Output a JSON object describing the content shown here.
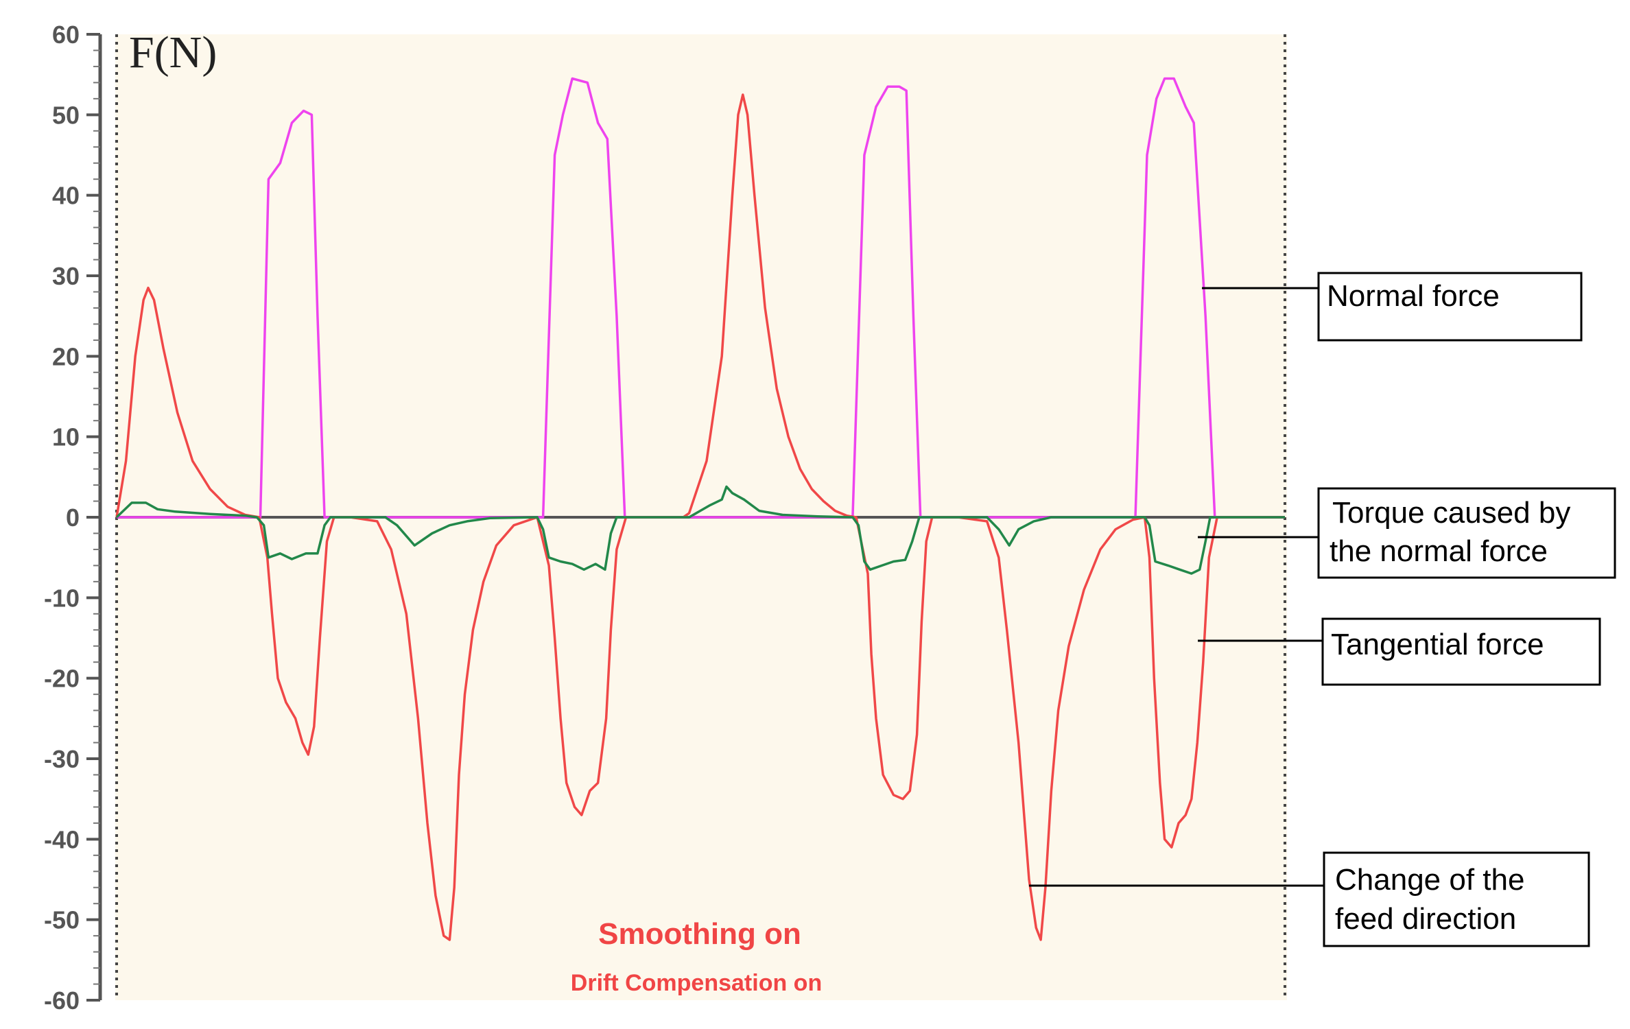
{
  "chart_data": {
    "type": "line",
    "ylabel": "F(N)",
    "ylim": [
      -60,
      60
    ],
    "yticks": [
      60,
      50,
      40,
      30,
      20,
      10,
      0,
      -10,
      -20,
      -30,
      -40,
      -50,
      -60
    ],
    "xlim": [
      0,
      100
    ],
    "grid": false,
    "status_lines": [
      "Smoothing on",
      "Drift Compensation on"
    ],
    "annotations": [
      {
        "id": "normal",
        "lines": [
          "Normal force"
        ]
      },
      {
        "id": "torque",
        "lines": [
          "Torque caused by",
          "the normal force"
        ]
      },
      {
        "id": "tangential",
        "lines": [
          "Tangential force"
        ]
      },
      {
        "id": "feed",
        "lines": [
          "Change of the",
          "feed direction"
        ]
      }
    ],
    "series": [
      {
        "color": "#ee44ee",
        "points": [
          [
            0,
            0
          ],
          [
            11,
            0
          ],
          [
            12.3,
            0
          ],
          [
            13,
            42
          ],
          [
            14,
            44
          ],
          [
            15,
            49
          ],
          [
            16,
            50.5
          ],
          [
            16.7,
            50
          ],
          [
            17.2,
            25
          ],
          [
            17.8,
            0
          ],
          [
            35.5,
            0
          ],
          [
            36.5,
            0
          ],
          [
            37.5,
            45
          ],
          [
            38.2,
            50
          ],
          [
            39,
            54.5
          ],
          [
            40.3,
            54
          ],
          [
            41.2,
            49
          ],
          [
            42,
            47
          ],
          [
            42.8,
            25
          ],
          [
            43.5,
            0
          ],
          [
            62,
            0
          ],
          [
            63,
            0
          ],
          [
            64,
            45
          ],
          [
            65,
            51
          ],
          [
            66,
            53.5
          ],
          [
            67,
            53.5
          ],
          [
            67.6,
            53
          ],
          [
            68.2,
            25
          ],
          [
            68.8,
            0
          ],
          [
            86.4,
            0
          ],
          [
            87.2,
            0
          ],
          [
            88.2,
            45
          ],
          [
            89,
            52
          ],
          [
            89.7,
            54.5
          ],
          [
            90.5,
            54.5
          ],
          [
            91.5,
            51
          ],
          [
            92.2,
            49
          ],
          [
            93.2,
            25
          ],
          [
            94,
            0
          ],
          [
            100,
            0
          ]
        ]
      },
      {
        "color": "#f04848",
        "points": [
          [
            0,
            0
          ],
          [
            0.8,
            7
          ],
          [
            1.6,
            20
          ],
          [
            2.3,
            27
          ],
          [
            2.7,
            28.5
          ],
          [
            3.2,
            27
          ],
          [
            4,
            21
          ],
          [
            5.2,
            13
          ],
          [
            6.5,
            7
          ],
          [
            8,
            3.5
          ],
          [
            9.5,
            1.3
          ],
          [
            11,
            0.3
          ],
          [
            12.2,
            0
          ],
          [
            12.9,
            -5
          ],
          [
            13.3,
            -12
          ],
          [
            13.8,
            -20
          ],
          [
            14.5,
            -23
          ],
          [
            15.3,
            -25
          ],
          [
            15.9,
            -28
          ],
          [
            16.4,
            -29.5
          ],
          [
            16.9,
            -26
          ],
          [
            17.4,
            -15
          ],
          [
            18,
            -3
          ],
          [
            18.6,
            0
          ],
          [
            20,
            0
          ],
          [
            22.3,
            -0.5
          ],
          [
            23.5,
            -4
          ],
          [
            24.8,
            -12
          ],
          [
            25.8,
            -25
          ],
          [
            26.6,
            -38
          ],
          [
            27.3,
            -47
          ],
          [
            28,
            -52
          ],
          [
            28.5,
            -52.5
          ],
          [
            28.9,
            -46
          ],
          [
            29.3,
            -32
          ],
          [
            29.8,
            -22
          ],
          [
            30.5,
            -14
          ],
          [
            31.4,
            -8
          ],
          [
            32.5,
            -3.5
          ],
          [
            34,
            -1
          ],
          [
            36,
            0
          ],
          [
            37,
            -6
          ],
          [
            37.5,
            -15
          ],
          [
            38,
            -25
          ],
          [
            38.5,
            -33
          ],
          [
            39.2,
            -36
          ],
          [
            39.8,
            -37
          ],
          [
            40.5,
            -34
          ],
          [
            41.2,
            -33
          ],
          [
            41.9,
            -25
          ],
          [
            42.3,
            -14
          ],
          [
            42.8,
            -4
          ],
          [
            43.6,
            0
          ],
          [
            48.5,
            0
          ],
          [
            49,
            0.5
          ],
          [
            50.5,
            7
          ],
          [
            51.8,
            20
          ],
          [
            52.7,
            40
          ],
          [
            53.2,
            50
          ],
          [
            53.6,
            52.5
          ],
          [
            54,
            50
          ],
          [
            54.6,
            40
          ],
          [
            55.5,
            26
          ],
          [
            56.5,
            16
          ],
          [
            57.5,
            10
          ],
          [
            58.5,
            6
          ],
          [
            59.5,
            3.5
          ],
          [
            60.5,
            2
          ],
          [
            61.5,
            0.8
          ],
          [
            62.5,
            0.2
          ],
          [
            63.3,
            0
          ],
          [
            64.3,
            -7
          ],
          [
            64.6,
            -17
          ],
          [
            65,
            -25
          ],
          [
            65.6,
            -32
          ],
          [
            66.5,
            -34.5
          ],
          [
            67.3,
            -35
          ],
          [
            67.9,
            -34
          ],
          [
            68.5,
            -27
          ],
          [
            68.9,
            -13
          ],
          [
            69.3,
            -3
          ],
          [
            69.8,
            0
          ],
          [
            72,
            0
          ],
          [
            74.5,
            -0.5
          ],
          [
            75.5,
            -5
          ],
          [
            76.2,
            -14
          ],
          [
            77.2,
            -28
          ],
          [
            78.1,
            -45
          ],
          [
            78.7,
            -51
          ],
          [
            79.1,
            -52.5
          ],
          [
            79.5,
            -46
          ],
          [
            80,
            -34
          ],
          [
            80.6,
            -24
          ],
          [
            81.5,
            -16
          ],
          [
            82.8,
            -9
          ],
          [
            84.2,
            -4
          ],
          [
            85.5,
            -1.5
          ],
          [
            87,
            -0.3
          ],
          [
            88,
            0
          ],
          [
            88.4,
            -5
          ],
          [
            88.8,
            -20
          ],
          [
            89.3,
            -33
          ],
          [
            89.7,
            -40
          ],
          [
            90.3,
            -41
          ],
          [
            90.9,
            -38
          ],
          [
            91.5,
            -37
          ],
          [
            92,
            -35
          ],
          [
            92.5,
            -28
          ],
          [
            93,
            -18
          ],
          [
            93.5,
            -5
          ],
          [
            94.2,
            0
          ],
          [
            100,
            0
          ]
        ]
      },
      {
        "color": "#22884a",
        "points": [
          [
            0,
            0
          ],
          [
            1.3,
            1.8
          ],
          [
            2.5,
            1.8
          ],
          [
            3.5,
            1
          ],
          [
            5,
            0.7
          ],
          [
            8,
            0.4
          ],
          [
            11,
            0.2
          ],
          [
            12,
            0
          ],
          [
            12.6,
            -1
          ],
          [
            13,
            -5
          ],
          [
            14,
            -4.5
          ],
          [
            15,
            -5.2
          ],
          [
            16.2,
            -4.5
          ],
          [
            17.2,
            -4.5
          ],
          [
            17.8,
            -1
          ],
          [
            18.3,
            0
          ],
          [
            23,
            0
          ],
          [
            24,
            -1
          ],
          [
            25.5,
            -3.5
          ],
          [
            27,
            -2
          ],
          [
            28.5,
            -1
          ],
          [
            30,
            -0.5
          ],
          [
            32,
            -0.1
          ],
          [
            36,
            0
          ],
          [
            36.5,
            -1.5
          ],
          [
            37,
            -5
          ],
          [
            38,
            -5.5
          ],
          [
            39,
            -5.8
          ],
          [
            40,
            -6.5
          ],
          [
            41,
            -5.8
          ],
          [
            41.8,
            -6.5
          ],
          [
            42.3,
            -2
          ],
          [
            42.8,
            0
          ],
          [
            49,
            0
          ],
          [
            50.8,
            1.5
          ],
          [
            51.8,
            2.2
          ],
          [
            52.2,
            3.8
          ],
          [
            52.7,
            3
          ],
          [
            53.7,
            2.2
          ],
          [
            55,
            0.8
          ],
          [
            57,
            0.3
          ],
          [
            60,
            0.1
          ],
          [
            63,
            0
          ],
          [
            63.5,
            -1
          ],
          [
            64,
            -5.5
          ],
          [
            64.5,
            -6.5
          ],
          [
            65.5,
            -6
          ],
          [
            66.5,
            -5.5
          ],
          [
            67.5,
            -5.3
          ],
          [
            68.1,
            -3
          ],
          [
            68.7,
            0
          ],
          [
            74.5,
            0
          ],
          [
            75.5,
            -1.5
          ],
          [
            76.4,
            -3.5
          ],
          [
            77.2,
            -1.5
          ],
          [
            78.5,
            -0.5
          ],
          [
            80,
            0
          ],
          [
            88,
            0
          ],
          [
            88.4,
            -1
          ],
          [
            88.9,
            -5.5
          ],
          [
            90,
            -6
          ],
          [
            91,
            -6.5
          ],
          [
            92,
            -7
          ],
          [
            92.7,
            -6.5
          ],
          [
            93.2,
            -3
          ],
          [
            93.6,
            0
          ],
          [
            100,
            0
          ]
        ]
      },
      {
        "color": "#555555",
        "points": [
          [
            0,
            0
          ],
          [
            100,
            0
          ]
        ]
      }
    ]
  }
}
